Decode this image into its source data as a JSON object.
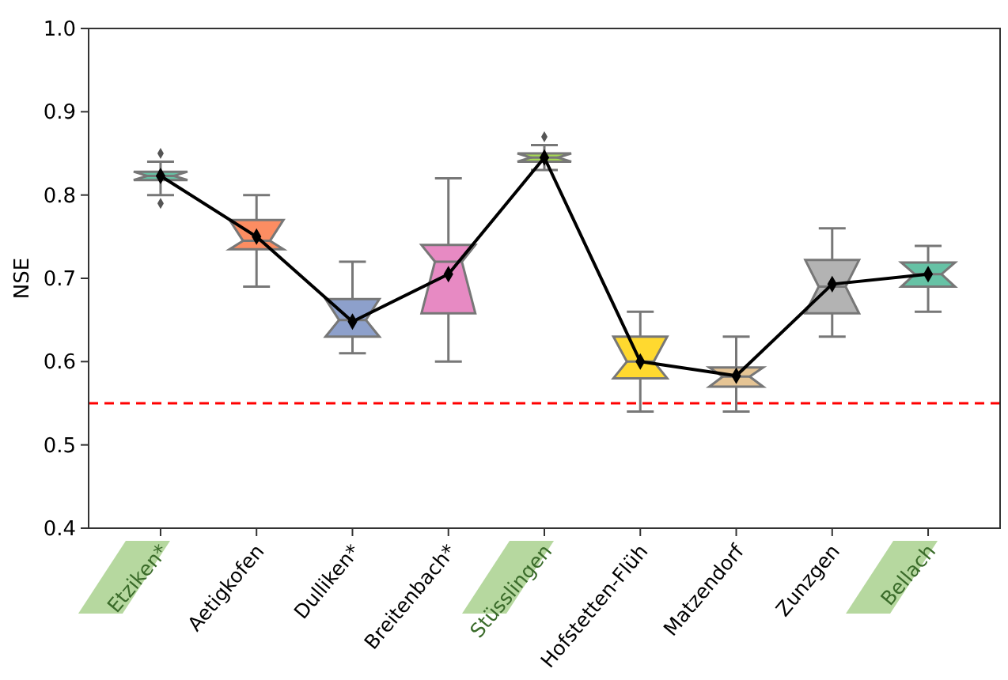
{
  "chart_data": {
    "type": "box",
    "ylabel": "NSE",
    "categories": [
      "Etziken*",
      "Aetigkofen",
      "Dulliken*",
      "Breitenbach*",
      "Stüsslingen",
      "Hofstetten-Flüh",
      "Matzendorf",
      "Zunzgen",
      "Bellach"
    ],
    "ylim": [
      0.4,
      1.0
    ],
    "yticks": [
      0.4,
      0.5,
      0.6,
      0.7,
      0.8,
      0.9,
      {
        "value": 1.0,
        "label": "1.0"
      }
    ],
    "grid": false,
    "marker": "diamond",
    "colors": [
      "#66c2a5",
      "#fc8d62",
      "#8da0cb",
      "#e78ac3",
      "#a6d854",
      "#ffd92f",
      "#e5c494",
      "#b3b3b3",
      "#66c2a5"
    ],
    "boxes": [
      {
        "low": 0.8,
        "q1": 0.818,
        "median": 0.823,
        "q3": 0.828,
        "high": 0.84,
        "outliers": [
          0.85,
          0.79
        ]
      },
      {
        "low": 0.69,
        "q1": 0.735,
        "median": 0.745,
        "q3": 0.77,
        "high": 0.8
      },
      {
        "low": 0.61,
        "q1": 0.63,
        "median": 0.65,
        "q3": 0.675,
        "high": 0.72
      },
      {
        "low": 0.6,
        "q1": 0.658,
        "median": 0.72,
        "q3": 0.74,
        "high": 0.82
      },
      {
        "low": 0.83,
        "q1": 0.84,
        "median": 0.845,
        "q3": 0.85,
        "high": 0.86,
        "outliers": [
          0.87
        ]
      },
      {
        "low": 0.54,
        "q1": 0.58,
        "median": 0.6,
        "q3": 0.63,
        "high": 0.66
      },
      {
        "low": 0.54,
        "q1": 0.57,
        "median": 0.582,
        "q3": 0.593,
        "high": 0.63
      },
      {
        "low": 0.63,
        "q1": 0.658,
        "median": 0.69,
        "q3": 0.722,
        "high": 0.76
      },
      {
        "low": 0.66,
        "q1": 0.69,
        "median": 0.705,
        "q3": 0.719,
        "high": 0.739
      }
    ],
    "series": [
      {
        "type": "line",
        "color": "#000000",
        "values": [
          0.823,
          0.75,
          0.648,
          0.705,
          0.845,
          0.6,
          0.583,
          0.693,
          0.705
        ]
      }
    ],
    "ref_lines": [
      {
        "axis": "y",
        "value": 0.55,
        "color": "#ff0000",
        "line_style": "dashed"
      }
    ]
  }
}
